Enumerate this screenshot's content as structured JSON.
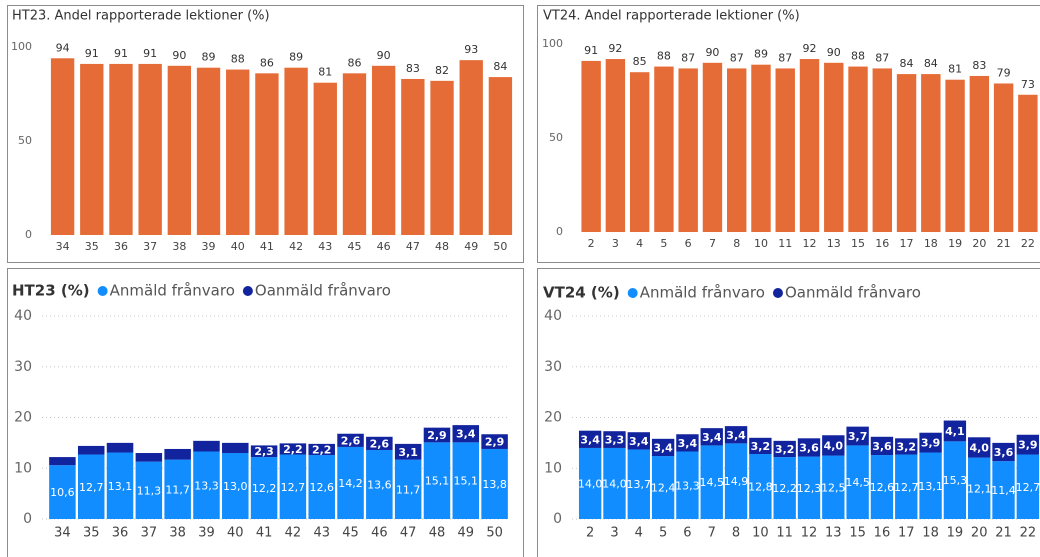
{
  "chart_data": [
    {
      "type": "bar",
      "title": "HT23. Andel rapporterade lektioner (%)",
      "categories": [
        "34",
        "35",
        "36",
        "37",
        "38",
        "39",
        "40",
        "41",
        "42",
        "43",
        "45",
        "46",
        "47",
        "48",
        "49",
        "50"
      ],
      "values": [
        94,
        91,
        91,
        91,
        90,
        89,
        88,
        86,
        89,
        81,
        86,
        90,
        83,
        82,
        93,
        84
      ],
      "color": "#e66c37",
      "ylim": [
        0,
        100
      ],
      "yticks": [
        0,
        50,
        100
      ],
      "grid": false
    },
    {
      "type": "bar",
      "title": "VT24. Andel rapporterade lektioner (%)",
      "categories": [
        "2",
        "3",
        "4",
        "5",
        "6",
        "7",
        "8",
        "10",
        "11",
        "12",
        "13",
        "15",
        "16",
        "17",
        "18",
        "19",
        "20",
        "21",
        "22"
      ],
      "values": [
        91,
        92,
        85,
        88,
        87,
        90,
        87,
        89,
        87,
        92,
        90,
        88,
        87,
        84,
        84,
        81,
        83,
        79,
        73
      ],
      "color": "#e66c37",
      "ylim": [
        0,
        100
      ],
      "yticks": [
        0,
        50,
        100
      ],
      "grid": false
    },
    {
      "type": "stacked_bar",
      "title": "HT23 (%)",
      "legend": "top",
      "categories": [
        "34",
        "35",
        "36",
        "37",
        "38",
        "39",
        "40",
        "41",
        "42",
        "43",
        "45",
        "46",
        "47",
        "48",
        "49",
        "50"
      ],
      "series": [
        {
          "name": "Anmäld frånvaro",
          "color": "#118dff",
          "values": [
            10.6,
            12.7,
            13.1,
            11.3,
            11.7,
            13.3,
            13.0,
            12.2,
            12.7,
            12.6,
            14.2,
            13.6,
            11.7,
            15.1,
            15.1,
            13.8
          ],
          "value_labels": [
            "10,6",
            "12,7",
            "13,1",
            "11,3",
            "11,7",
            "13,3",
            "13,0",
            "12,2",
            "12,7",
            "12,6",
            "14,2",
            "13,6",
            "11,7",
            "15,1",
            "15,1",
            "13,8"
          ]
        },
        {
          "name": "Oanmäld frånvaro",
          "color": "#12239e",
          "values": [
            1.6,
            1.7,
            1.9,
            1.7,
            2.1,
            2.1,
            2.0,
            2.3,
            2.2,
            2.2,
            2.6,
            2.6,
            3.1,
            2.9,
            3.4,
            2.9
          ],
          "value_labels": [
            null,
            null,
            null,
            null,
            null,
            null,
            null,
            "2,3",
            "2,2",
            "2,2",
            "2,6",
            "2,6",
            "3,1",
            "2,9",
            "3,4",
            "2,9"
          ]
        }
      ],
      "ylim": [
        0,
        40
      ],
      "yticks": [
        0,
        10,
        20,
        30,
        40
      ],
      "grid": true
    },
    {
      "type": "stacked_bar",
      "title": "VT24 (%)",
      "legend": "top",
      "categories": [
        "2",
        "3",
        "4",
        "5",
        "6",
        "7",
        "8",
        "10",
        "11",
        "12",
        "13",
        "15",
        "16",
        "17",
        "18",
        "19",
        "20",
        "21",
        "22"
      ],
      "series": [
        {
          "name": "Anmäld frånvaro",
          "color": "#118dff",
          "values": [
            14.0,
            14.0,
            13.7,
            12.4,
            13.3,
            14.5,
            14.9,
            12.8,
            12.2,
            12.3,
            12.5,
            14.5,
            12.6,
            12.7,
            13.1,
            15.3,
            12.1,
            11.4,
            12.7
          ],
          "value_labels": [
            "14,0",
            "14,0",
            "13,7",
            "12,4",
            "13,3",
            "14,5",
            "14,9",
            "12,8",
            "12,2",
            "12,3",
            "12,5",
            "14,5",
            "12,6",
            "12,7",
            "13,1",
            "15,3",
            "12,1",
            "11,4",
            "12,7"
          ]
        },
        {
          "name": "Oanmäld frånvaro",
          "color": "#12239e",
          "values": [
            3.4,
            3.3,
            3.4,
            3.4,
            3.4,
            3.4,
            3.4,
            3.2,
            3.2,
            3.6,
            4.0,
            3.7,
            3.6,
            3.2,
            3.9,
            4.1,
            4.0,
            3.6,
            3.9
          ],
          "value_labels": [
            "3,4",
            "3,3",
            "3,4",
            "3,4",
            "3,4",
            "3,4",
            "3,4",
            "3,2",
            "3,2",
            "3,6",
            "4,0",
            "3,7",
            "3,6",
            "3,2",
            "3,9",
            "4,1",
            "4,0",
            "3,6",
            "3,9"
          ]
        }
      ],
      "ylim": [
        0,
        40
      ],
      "yticks": [
        0,
        10,
        20,
        30,
        40
      ],
      "grid": true
    }
  ]
}
